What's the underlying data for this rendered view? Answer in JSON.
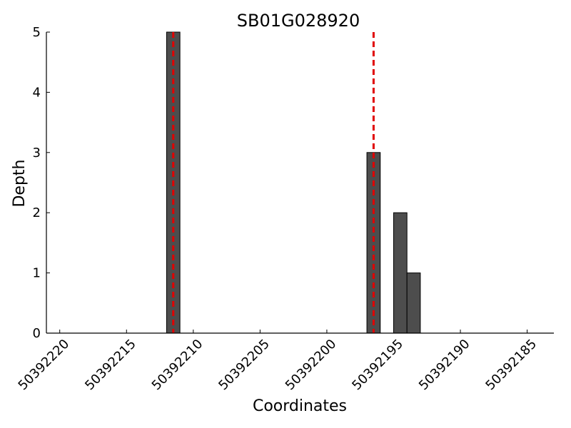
{
  "chart_data": {
    "type": "bar",
    "title": "SB01G028920",
    "x_label": "Coordinates",
    "y_label": "Depth",
    "x": [
      50392212,
      50392197,
      50392195,
      50392194
    ],
    "values": [
      5,
      3,
      2,
      1
    ],
    "color": "#4d4d4d",
    "xlim": [
      50392221,
      50392183
    ],
    "xticks": [
      50392220,
      50392215,
      50392210,
      50392205,
      50392200,
      50392195,
      50392190,
      50392185
    ],
    "ylim": [
      0,
      5
    ],
    "yticks": [
      0,
      1,
      2,
      3,
      4,
      5
    ],
    "vlines": [
      50392211.5,
      50392196.5
    ],
    "vline_color": "#e00000",
    "grid": false
  }
}
